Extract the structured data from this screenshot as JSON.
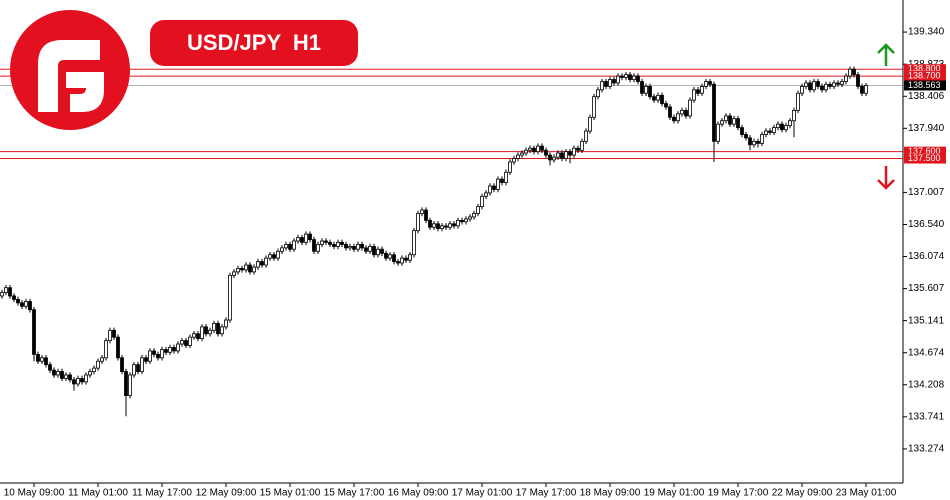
{
  "chart_data": {
    "type": "candlestick",
    "title": "USD/JPY H1",
    "categories": [
      null,
      null,
      null,
      null,
      null,
      null,
      null,
      null,
      "10 May 09:00",
      null,
      null,
      null,
      null,
      null,
      null,
      null,
      null,
      null,
      null,
      null,
      null,
      null,
      null,
      null,
      "11 May 01:00",
      null,
      null,
      null,
      null,
      null,
      null,
      null,
      null,
      null,
      null,
      null,
      null,
      null,
      null,
      null,
      "11 May 17:00",
      null,
      null,
      null,
      null,
      null,
      null,
      null,
      null,
      null,
      null,
      null,
      null,
      null,
      null,
      null,
      "12 May 09:00",
      null,
      null,
      null,
      null,
      null,
      null,
      null,
      null,
      null,
      null,
      null,
      null,
      null,
      null,
      null,
      "15 May 01:00",
      null,
      null,
      null,
      null,
      null,
      null,
      null,
      null,
      null,
      null,
      null,
      null,
      null,
      null,
      null,
      "15 May 17:00",
      null,
      null,
      null,
      null,
      null,
      null,
      null,
      null,
      null,
      null,
      null,
      null,
      null,
      null,
      null,
      "16 May 09:00",
      null,
      null,
      null,
      null,
      null,
      null,
      null,
      null,
      null,
      null,
      null,
      null,
      null,
      null,
      null,
      "17 May 01:00",
      null,
      null,
      null,
      null,
      null,
      null,
      null,
      null,
      null,
      null,
      null,
      null,
      null,
      null,
      null,
      "17 May 17:00",
      null,
      null,
      null,
      null,
      null,
      null,
      null,
      null,
      null,
      null,
      null,
      null,
      null,
      null,
      null,
      "18 May 09:00",
      null,
      null,
      null,
      null,
      null,
      null,
      null,
      null,
      null,
      null,
      null,
      null,
      null,
      null,
      null,
      "19 May 01:00",
      null,
      null,
      null,
      null,
      null,
      null,
      null,
      null,
      null,
      null,
      null,
      null,
      null,
      null,
      null,
      "19 May 17:00",
      null,
      null,
      null,
      null,
      null,
      null,
      null,
      null,
      null,
      null,
      null,
      null,
      null,
      null,
      null,
      "22 May 09:00",
      null,
      null,
      null,
      null,
      null,
      null,
      null,
      null,
      null,
      null,
      null,
      null,
      null,
      null,
      null,
      "23 May 01:00"
    ],
    "open": [
      135.5,
      135.55,
      135.62,
      135.5,
      135.45,
      135.4,
      135.35,
      135.42,
      135.3,
      134.65,
      134.55,
      134.6,
      134.5,
      134.42,
      134.35,
      134.4,
      134.3,
      134.35,
      134.28,
      134.22,
      134.3,
      134.25,
      134.35,
      134.4,
      134.45,
      134.55,
      134.6,
      134.85,
      135.0,
      134.9,
      134.6,
      134.4,
      134.05,
      134.35,
      134.5,
      134.4,
      134.6,
      134.55,
      134.7,
      134.65,
      134.6,
      134.72,
      134.68,
      134.75,
      134.7,
      134.8,
      134.85,
      134.78,
      134.9,
      134.95,
      134.88,
      135.05,
      134.95,
      135.0,
      135.1,
      134.95,
      135.05,
      135.15,
      135.8,
      135.85,
      135.9,
      135.88,
      135.95,
      135.85,
      135.92,
      136.0,
      135.95,
      136.05,
      136.1,
      136.05,
      136.15,
      136.2,
      136.25,
      136.18,
      136.3,
      136.35,
      136.28,
      136.4,
      136.32,
      136.15,
      136.25,
      136.3,
      136.28,
      136.25,
      136.22,
      136.28,
      136.25,
      136.2,
      136.22,
      136.18,
      136.25,
      136.2,
      136.15,
      136.22,
      136.1,
      136.18,
      136.12,
      136.05,
      136.1,
      136.0,
      135.98,
      136.05,
      136.02,
      136.1,
      136.45,
      136.7,
      136.75,
      136.6,
      136.5,
      136.55,
      136.48,
      136.52,
      136.5,
      136.55,
      136.52,
      136.6,
      136.58,
      136.62,
      136.65,
      136.7,
      136.8,
      136.95,
      137.0,
      137.1,
      137.05,
      137.2,
      137.15,
      137.3,
      137.45,
      137.5,
      137.55,
      137.58,
      137.62,
      137.65,
      137.6,
      137.68,
      137.62,
      137.55,
      137.48,
      137.52,
      137.58,
      137.5,
      137.6,
      137.55,
      137.65,
      137.62,
      137.75,
      137.9,
      138.1,
      138.4,
      138.5,
      138.62,
      138.55,
      138.65,
      138.6,
      138.7,
      138.68,
      138.72,
      138.65,
      138.7,
      138.62,
      138.45,
      138.55,
      138.4,
      138.35,
      138.42,
      138.3,
      138.25,
      138.1,
      138.05,
      138.15,
      138.2,
      138.12,
      138.35,
      138.5,
      138.45,
      138.55,
      138.62,
      138.58,
      137.75,
      138.0,
      138.05,
      138.12,
      138.0,
      138.08,
      137.95,
      137.85,
      137.8,
      137.7,
      137.75,
      137.72,
      137.85,
      137.9,
      137.88,
      137.95,
      138.0,
      137.92,
      137.98,
      138.05,
      138.2,
      138.45,
      138.55,
      138.6,
      138.5,
      138.62,
      138.55,
      138.5,
      138.58,
      138.55,
      138.6,
      138.58,
      138.62,
      138.7,
      138.8,
      138.72,
      138.55,
      138.45
    ],
    "high": [
      135.59,
      135.66,
      135.66,
      135.54,
      135.49,
      135.44,
      135.46,
      135.46,
      135.34,
      134.69,
      134.64,
      134.64,
      134.54,
      134.46,
      134.44,
      134.44,
      134.39,
      134.39,
      134.32,
      134.34,
      134.34,
      134.39,
      134.44,
      134.49,
      134.59,
      134.64,
      134.89,
      135.04,
      135.04,
      134.94,
      134.64,
      134.44,
      134.39,
      134.54,
      134.54,
      134.64,
      134.64,
      134.74,
      134.74,
      134.69,
      134.76,
      134.76,
      134.79,
      134.79,
      134.84,
      134.89,
      134.89,
      134.94,
      134.99,
      134.99,
      135.09,
      135.09,
      135.04,
      135.14,
      135.14,
      135.09,
      135.19,
      135.84,
      135.89,
      135.94,
      135.94,
      135.99,
      135.99,
      135.96,
      136.04,
      136.04,
      136.09,
      136.14,
      136.14,
      136.19,
      136.24,
      136.29,
      136.29,
      136.34,
      136.39,
      136.39,
      136.44,
      136.44,
      136.36,
      136.29,
      136.34,
      136.34,
      136.32,
      136.29,
      136.32,
      136.32,
      136.29,
      136.26,
      136.26,
      136.29,
      136.29,
      136.24,
      136.26,
      136.26,
      136.22,
      136.22,
      136.16,
      136.14,
      136.14,
      136.04,
      136.09,
      136.09,
      136.14,
      136.49,
      136.74,
      136.79,
      136.79,
      136.64,
      136.59,
      136.59,
      136.56,
      136.56,
      136.59,
      136.59,
      136.64,
      136.64,
      136.66,
      136.69,
      136.74,
      136.84,
      136.99,
      137.04,
      137.14,
      137.14,
      137.24,
      137.24,
      137.34,
      137.49,
      137.54,
      137.59,
      137.62,
      137.66,
      137.69,
      137.69,
      137.72,
      137.72,
      137.66,
      137.59,
      137.56,
      137.62,
      137.62,
      137.64,
      137.64,
      137.69,
      137.69,
      137.79,
      137.94,
      138.14,
      138.44,
      138.54,
      138.66,
      138.66,
      138.69,
      138.69,
      138.74,
      138.74,
      138.76,
      138.76,
      138.74,
      138.74,
      138.66,
      138.59,
      138.59,
      138.44,
      138.46,
      138.46,
      138.34,
      138.29,
      138.14,
      138.19,
      138.24,
      138.24,
      138.39,
      138.54,
      138.54,
      138.59,
      138.66,
      138.66,
      138.62,
      138.04,
      138.09,
      138.16,
      138.16,
      138.12,
      138.12,
      137.99,
      137.89,
      137.84,
      137.79,
      137.79,
      137.89,
      137.94,
      137.94,
      137.99,
      138.04,
      138.04,
      138.02,
      138.09,
      138.24,
      138.49,
      138.59,
      138.64,
      138.64,
      138.66,
      138.66,
      138.59,
      138.62,
      138.62,
      138.64,
      138.64,
      138.66,
      138.74,
      138.84,
      138.84,
      138.76,
      138.59,
      138.6
    ],
    "low": [
      135.46,
      135.51,
      135.46,
      135.41,
      135.36,
      135.31,
      135.31,
      135.26,
      134.55,
      134.51,
      134.51,
      134.46,
      134.38,
      134.31,
      134.31,
      134.26,
      134.26,
      134.24,
      134.12,
      134.18,
      134.21,
      134.21,
      134.31,
      134.36,
      134.41,
      134.51,
      134.56,
      134.81,
      134.86,
      134.56,
      134.36,
      133.75,
      134.01,
      134.31,
      134.36,
      134.36,
      134.51,
      134.51,
      134.61,
      134.56,
      134.56,
      134.64,
      134.64,
      134.66,
      134.66,
      134.76,
      134.74,
      134.74,
      134.86,
      134.84,
      134.84,
      134.91,
      134.91,
      134.96,
      134.91,
      134.91,
      135.01,
      135.11,
      135.76,
      135.81,
      135.84,
      135.84,
      135.81,
      135.81,
      135.88,
      135.91,
      135.91,
      136.01,
      136.01,
      136.01,
      136.11,
      136.16,
      136.14,
      136.14,
      136.26,
      136.24,
      136.24,
      136.28,
      136.11,
      136.11,
      136.21,
      136.24,
      136.21,
      136.18,
      136.18,
      136.21,
      136.16,
      136.16,
      136.14,
      136.14,
      136.16,
      136.11,
      136.11,
      136.06,
      136.06,
      136.08,
      136.01,
      136.01,
      135.96,
      135.94,
      135.94,
      135.98,
      135.98,
      136.06,
      136.41,
      136.66,
      136.56,
      136.46,
      136.46,
      136.44,
      136.44,
      136.46,
      136.46,
      136.48,
      136.48,
      136.54,
      136.54,
      136.58,
      136.61,
      136.66,
      136.76,
      136.91,
      136.96,
      137.01,
      137.01,
      137.11,
      137.11,
      137.26,
      137.41,
      137.46,
      137.51,
      137.54,
      137.58,
      137.56,
      137.56,
      137.58,
      137.51,
      137.4,
      137.44,
      137.48,
      137.46,
      137.46,
      137.43,
      137.51,
      137.58,
      137.58,
      137.71,
      137.86,
      138.06,
      138.36,
      138.46,
      138.51,
      138.51,
      138.56,
      138.56,
      138.64,
      138.64,
      138.61,
      138.61,
      138.58,
      138.41,
      138.41,
      138.36,
      138.31,
      138.31,
      138.26,
      138.21,
      138.06,
      138.01,
      138.01,
      138.11,
      138.08,
      138.08,
      138.31,
      138.41,
      138.41,
      138.51,
      138.54,
      137.45,
      137.71,
      137.96,
      138.01,
      137.96,
      137.96,
      137.91,
      137.81,
      137.76,
      137.62,
      137.66,
      137.66,
      137.68,
      137.81,
      137.84,
      137.84,
      137.91,
      137.88,
      137.88,
      137.94,
      137.81,
      138.16,
      138.41,
      138.51,
      138.46,
      138.46,
      138.51,
      138.46,
      138.46,
      138.51,
      138.51,
      138.54,
      138.54,
      138.58,
      138.66,
      138.68,
      138.51,
      138.41,
      138.41
    ],
    "close": [
      135.55,
      135.62,
      135.5,
      135.45,
      135.4,
      135.35,
      135.42,
      135.3,
      134.65,
      134.55,
      134.6,
      134.5,
      134.42,
      134.35,
      134.4,
      134.3,
      134.35,
      134.28,
      134.22,
      134.3,
      134.25,
      134.35,
      134.4,
      134.45,
      134.55,
      134.6,
      134.85,
      135.0,
      134.9,
      134.6,
      134.4,
      134.05,
      134.35,
      134.5,
      134.4,
      134.6,
      134.55,
      134.7,
      134.65,
      134.6,
      134.72,
      134.68,
      134.75,
      134.7,
      134.8,
      134.85,
      134.78,
      134.9,
      134.95,
      134.88,
      135.05,
      134.95,
      135.0,
      135.1,
      134.95,
      135.05,
      135.15,
      135.8,
      135.85,
      135.9,
      135.88,
      135.95,
      135.85,
      135.92,
      136.0,
      135.95,
      136.05,
      136.1,
      136.05,
      136.15,
      136.2,
      136.25,
      136.18,
      136.3,
      136.35,
      136.28,
      136.4,
      136.32,
      136.15,
      136.25,
      136.3,
      136.28,
      136.25,
      136.22,
      136.28,
      136.25,
      136.2,
      136.22,
      136.18,
      136.25,
      136.2,
      136.15,
      136.22,
      136.1,
      136.18,
      136.12,
      136.05,
      136.1,
      136.0,
      135.98,
      136.05,
      136.02,
      136.1,
      136.45,
      136.7,
      136.75,
      136.6,
      136.5,
      136.55,
      136.48,
      136.52,
      136.5,
      136.55,
      136.52,
      136.6,
      136.58,
      136.62,
      136.65,
      136.7,
      136.8,
      136.95,
      137.0,
      137.1,
      137.05,
      137.2,
      137.15,
      137.3,
      137.45,
      137.5,
      137.55,
      137.58,
      137.62,
      137.65,
      137.6,
      137.68,
      137.62,
      137.55,
      137.48,
      137.52,
      137.58,
      137.5,
      137.6,
      137.55,
      137.65,
      137.62,
      137.75,
      137.9,
      138.1,
      138.4,
      138.5,
      138.62,
      138.55,
      138.65,
      138.6,
      138.7,
      138.68,
      138.72,
      138.65,
      138.7,
      138.62,
      138.45,
      138.55,
      138.4,
      138.35,
      138.42,
      138.3,
      138.25,
      138.1,
      138.05,
      138.15,
      138.2,
      138.12,
      138.35,
      138.5,
      138.45,
      138.55,
      138.62,
      138.58,
      137.75,
      138.0,
      138.05,
      138.12,
      138.0,
      138.08,
      137.95,
      137.85,
      137.8,
      137.7,
      137.75,
      137.72,
      137.85,
      137.9,
      137.88,
      137.95,
      138.0,
      137.92,
      137.98,
      138.05,
      138.2,
      138.45,
      138.55,
      138.6,
      138.5,
      138.62,
      138.55,
      138.5,
      138.58,
      138.55,
      138.6,
      138.58,
      138.62,
      138.7,
      138.8,
      138.72,
      138.55,
      138.45,
      138.563
    ],
    "up_color": "#ffffff",
    "down_color": "#000000",
    "ylim": [
      132.778,
      139.807
    ],
    "yticks": [
      {
        "value": 139.34,
        "label": "139.340"
      },
      138.873,
      138.406,
      {
        "value": 137.94,
        "label": "137.940"
      },
      137.007,
      {
        "value": 136.54,
        "label": "136.540"
      },
      136.074,
      135.607,
      135.141,
      134.674,
      134.208,
      133.741,
      133.274
    ],
    "levels": [
      {
        "value": 138.8,
        "label": "138.800"
      },
      {
        "value": 138.7,
        "label": "138.700"
      },
      {
        "value": 137.6,
        "label": "137.600"
      },
      {
        "value": 137.5,
        "label": "137.500"
      }
    ],
    "level_color": "#e0161e",
    "current_price": {
      "value": 138.563,
      "label": "138.563"
    }
  }
}
